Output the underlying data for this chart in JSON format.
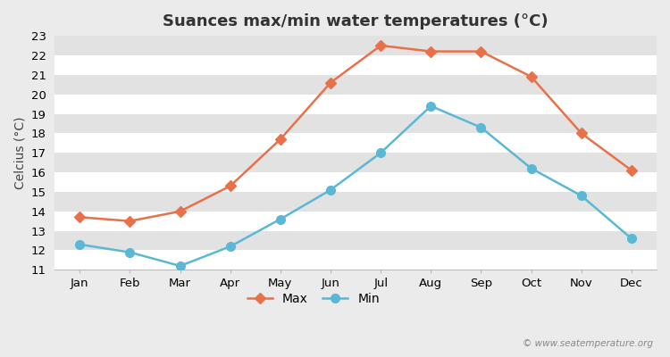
{
  "title": "Suances max/min water temperatures (°C)",
  "ylabel": "Celcius (°C)",
  "months": [
    "Jan",
    "Feb",
    "Mar",
    "Apr",
    "May",
    "Jun",
    "Jul",
    "Aug",
    "Sep",
    "Oct",
    "Nov",
    "Dec"
  ],
  "max_temps": [
    13.7,
    13.5,
    14.0,
    15.3,
    17.7,
    20.6,
    22.5,
    22.2,
    22.2,
    20.9,
    18.0,
    16.1
  ],
  "min_temps": [
    12.3,
    11.9,
    11.2,
    12.2,
    13.6,
    15.1,
    17.0,
    19.4,
    18.3,
    16.2,
    14.8,
    12.6
  ],
  "max_color": "#E8714A",
  "min_color": "#5BB8D4",
  "ylim": [
    11,
    23
  ],
  "yticks": [
    11,
    12,
    13,
    14,
    15,
    16,
    17,
    18,
    19,
    20,
    21,
    22,
    23
  ],
  "bg_color": "#EBEBEB",
  "plot_bg_color": "#F5F5F5",
  "band_color_light": "#F0F0F0",
  "band_color_dark": "#E2E2E2",
  "grid_color": "#FFFFFF",
  "max_marker": "D",
  "min_marker": "o",
  "max_marker_size": 6,
  "min_marker_size": 7,
  "line_width": 1.8,
  "title_fontsize": 13,
  "axis_label_fontsize": 10,
  "tick_fontsize": 9.5,
  "legend_fontsize": 10,
  "watermark": "© www.seatemperature.org"
}
